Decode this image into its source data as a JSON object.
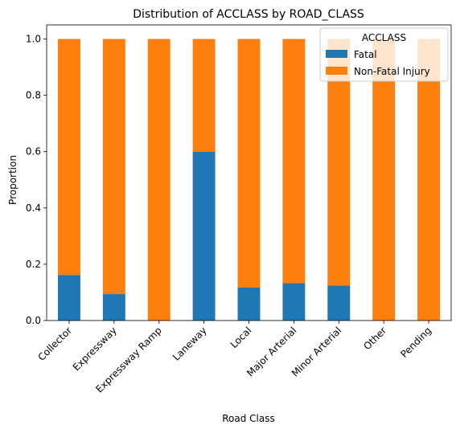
{
  "chart_data": {
    "type": "bar",
    "stacked": true,
    "title": "Distribution of ACCLASS by ROAD_CLASS",
    "xlabel": "Road Class",
    "ylabel": "Proportion",
    "ylim": [
      0,
      1.05
    ],
    "yticks": [
      "0.0",
      "0.2",
      "0.4",
      "0.6",
      "0.8",
      "1.0"
    ],
    "categories": [
      "Collector",
      "Expressway",
      "Expressway Ramp",
      "Laneway",
      "Local",
      "Major Arterial",
      "Minor Arterial",
      "Other",
      "Pending"
    ],
    "series": [
      {
        "name": "Fatal",
        "color": "#1f77b4",
        "values": [
          0.162,
          0.094,
          0.0,
          0.6,
          0.117,
          0.133,
          0.124,
          0.0,
          0.0
        ]
      },
      {
        "name": "Non-Fatal Injury",
        "color": "#ff7f0e",
        "values": [
          0.838,
          0.906,
          1.0,
          0.4,
          0.883,
          0.867,
          0.876,
          1.0,
          1.0
        ]
      }
    ],
    "legend": {
      "title": "ACCLASS",
      "placement": "top-right"
    },
    "grid": false
  }
}
